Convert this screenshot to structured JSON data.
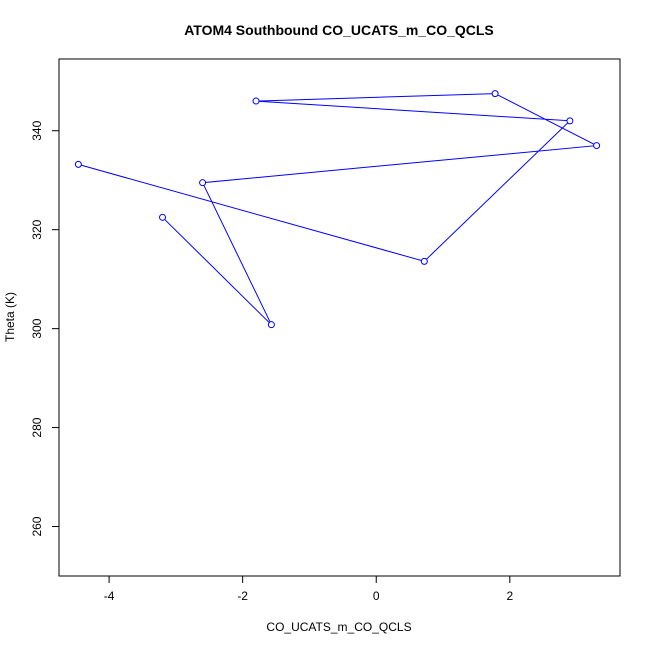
{
  "chart_data": {
    "type": "line",
    "title": "ATOM4 Southbound CO_UCATS_m_CO_QCLS",
    "xlabel": "CO_UCATS_m_CO_QCLS",
    "ylabel": "Theta (K)",
    "xlim": [
      -4.75,
      3.65
    ],
    "ylim": [
      250,
      354.5
    ],
    "xticks": [
      -4,
      -2,
      0,
      2
    ],
    "yticks": [
      260,
      280,
      300,
      320,
      340
    ],
    "xtick_labels": [
      "-4",
      "-2",
      "0",
      "2"
    ],
    "ytick_labels": [
      "260",
      "280",
      "300",
      "320",
      "340"
    ],
    "grid": false,
    "series_color": "#0000ff",
    "markers": "open-circle",
    "points": [
      {
        "x": -3.2,
        "y": 322.5
      },
      {
        "x": -1.57,
        "y": 300.8
      },
      {
        "x": -2.6,
        "y": 329.5
      },
      {
        "x": 3.3,
        "y": 337.0
      },
      {
        "x": 1.78,
        "y": 347.5
      },
      {
        "x": -1.8,
        "y": 346.0
      },
      {
        "x": 2.9,
        "y": 342.0
      },
      {
        "x": 0.72,
        "y": 313.6
      },
      {
        "x": -4.46,
        "y": 333.2
      }
    ]
  }
}
